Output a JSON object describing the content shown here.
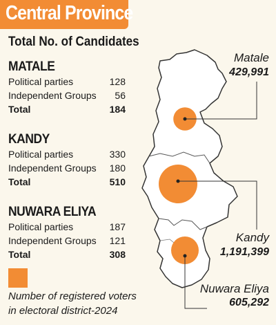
{
  "header": {
    "title": "Central Province"
  },
  "subtitle": "Total No. of Candidates",
  "districts": [
    {
      "name": "MATALE",
      "parties_label": "Political parties",
      "parties": "128",
      "groups_label": "Independent Groups",
      "groups": "56",
      "total_label": "Total",
      "total": "184"
    },
    {
      "name": "KANDY",
      "parties_label": "Political parties",
      "parties": "330",
      "groups_label": "Independent Groups",
      "groups": "180",
      "total_label": "Total",
      "total": "510"
    },
    {
      "name": "NUWARA ELIYA",
      "parties_label": "Political parties",
      "parties": "187",
      "groups_label": "Independent Groups",
      "groups": "121",
      "total_label": "Total",
      "total": "308"
    }
  ],
  "map": {
    "voters": [
      {
        "district": "Matale",
        "count": "429,991",
        "value": 429991
      },
      {
        "district": "Kandy",
        "count": "1,191,399",
        "value": 1191399
      },
      {
        "district": "Nuwara Eliya",
        "count": "605,292",
        "value": 605292
      }
    ],
    "bubble_color": "#f28c34"
  },
  "legend": {
    "line1": "Number of registered voters",
    "line2": "in electoral district-2024"
  }
}
